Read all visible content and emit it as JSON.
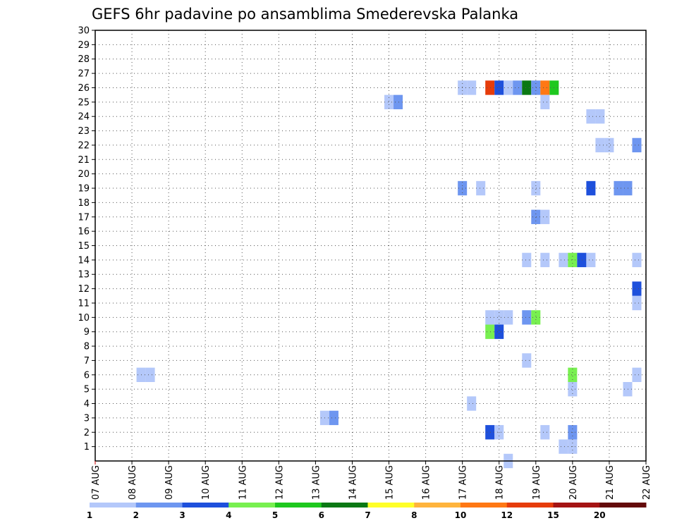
{
  "chart_data": {
    "type": "heatmap",
    "title": "GEFS 6hr padavine po ansamblima Smederevska Palanka",
    "xlabel": "",
    "ylabel": "",
    "x_tick_labels": [
      "07 AUG",
      "08 AUG",
      "09 AUG",
      "10 AUG",
      "11 AUG",
      "12 AUG",
      "13 AUG",
      "14 AUG",
      "15 AUG",
      "16 AUG",
      "17 AUG",
      "18 AUG",
      "19 AUG",
      "20 AUG",
      "21 AUG",
      "22 AUG"
    ],
    "x_range_days": [
      0,
      15
    ],
    "y_tick_labels": [
      1,
      2,
      3,
      4,
      5,
      6,
      7,
      8,
      9,
      10,
      11,
      12,
      13,
      14,
      15,
      16,
      17,
      18,
      19,
      20,
      21,
      22,
      23,
      24,
      25,
      26,
      27,
      28,
      29,
      30
    ],
    "y_range": [
      0,
      30
    ],
    "grid": true,
    "legend_placement": "bottom",
    "legend": {
      "labels": [
        "1",
        "2",
        "3",
        "4",
        "5",
        "6",
        "7",
        "8",
        "10",
        "12",
        "15",
        "20"
      ],
      "colors": [
        "#b4c8fa",
        "#6e96f0",
        "#1e50dc",
        "#78f050",
        "#1ec81e",
        "#0a7814",
        "#ffff28",
        "#ffb43c",
        "#ff7814",
        "#e63c0a",
        "#a51414",
        "#640a0a"
      ]
    },
    "cells": [
      {
        "t": 1.25,
        "m": 6,
        "c": 1
      },
      {
        "t": 1.5,
        "m": 6,
        "c": 1
      },
      {
        "t": 6.25,
        "m": 3,
        "c": 1
      },
      {
        "t": 6.5,
        "m": 3,
        "c": 2
      },
      {
        "t": 8.0,
        "m": 25,
        "c": 1
      },
      {
        "t": 8.25,
        "m": 25,
        "c": 2
      },
      {
        "t": 10.0,
        "m": 26,
        "c": 1
      },
      {
        "t": 10.25,
        "m": 26,
        "c": 1
      },
      {
        "t": 10.0,
        "m": 19,
        "c": 2
      },
      {
        "t": 10.5,
        "m": 19,
        "c": 1
      },
      {
        "t": 10.25,
        "m": 4,
        "c": 1
      },
      {
        "t": 10.75,
        "m": 26,
        "c": 10
      },
      {
        "t": 11.0,
        "m": 26,
        "c": 3
      },
      {
        "t": 11.25,
        "m": 26,
        "c": 1
      },
      {
        "t": 11.5,
        "m": 26,
        "c": 2
      },
      {
        "t": 11.75,
        "m": 26,
        "c": 6
      },
      {
        "t": 12.0,
        "m": 26,
        "c": 2
      },
      {
        "t": 12.25,
        "m": 26,
        "c": 9
      },
      {
        "t": 12.5,
        "m": 26,
        "c": 5
      },
      {
        "t": 12.25,
        "m": 25,
        "c": 1
      },
      {
        "t": 10.75,
        "m": 10,
        "c": 1
      },
      {
        "t": 11.0,
        "m": 10,
        "c": 1
      },
      {
        "t": 11.25,
        "m": 10,
        "c": 1
      },
      {
        "t": 10.75,
        "m": 9,
        "c": 4
      },
      {
        "t": 11.0,
        "m": 9,
        "c": 3
      },
      {
        "t": 10.75,
        "m": 2,
        "c": 3
      },
      {
        "t": 11.0,
        "m": 2,
        "c": 1
      },
      {
        "t": 11.25,
        "m": 0,
        "c": 1
      },
      {
        "t": 11.75,
        "m": 14,
        "c": 1
      },
      {
        "t": 11.75,
        "m": 10,
        "c": 2
      },
      {
        "t": 12.0,
        "m": 10,
        "c": 4
      },
      {
        "t": 11.75,
        "m": 7,
        "c": 1
      },
      {
        "t": 12.0,
        "m": 19,
        "c": 1
      },
      {
        "t": 12.0,
        "m": 17,
        "c": 2
      },
      {
        "t": 12.25,
        "m": 17,
        "c": 1
      },
      {
        "t": 12.25,
        "m": 14,
        "c": 1
      },
      {
        "t": 12.25,
        "m": 2,
        "c": 1
      },
      {
        "t": 12.75,
        "m": 14,
        "c": 1
      },
      {
        "t": 13.0,
        "m": 14,
        "c": 4
      },
      {
        "t": 13.25,
        "m": 14,
        "c": 3
      },
      {
        "t": 13.5,
        "m": 14,
        "c": 1
      },
      {
        "t": 13.0,
        "m": 6,
        "c": 4
      },
      {
        "t": 13.0,
        "m": 5,
        "c": 1
      },
      {
        "t": 13.0,
        "m": 2,
        "c": 2
      },
      {
        "t": 12.75,
        "m": 1,
        "c": 1
      },
      {
        "t": 13.0,
        "m": 1,
        "c": 1
      },
      {
        "t": 13.5,
        "m": 19,
        "c": 3
      },
      {
        "t": 13.5,
        "m": 24,
        "c": 1
      },
      {
        "t": 13.75,
        "m": 24,
        "c": 1
      },
      {
        "t": 13.75,
        "m": 22,
        "c": 1
      },
      {
        "t": 14.0,
        "m": 22,
        "c": 1
      },
      {
        "t": 14.25,
        "m": 19,
        "c": 2
      },
      {
        "t": 14.5,
        "m": 19,
        "c": 2
      },
      {
        "t": 14.5,
        "m": 5,
        "c": 1
      },
      {
        "t": 14.75,
        "m": 22,
        "c": 2
      },
      {
        "t": 14.75,
        "m": 14,
        "c": 1
      },
      {
        "t": 14.75,
        "m": 12,
        "c": 3
      },
      {
        "t": 14.75,
        "m": 11,
        "c": 1
      },
      {
        "t": 14.75,
        "m": 6,
        "c": 1
      }
    ]
  }
}
